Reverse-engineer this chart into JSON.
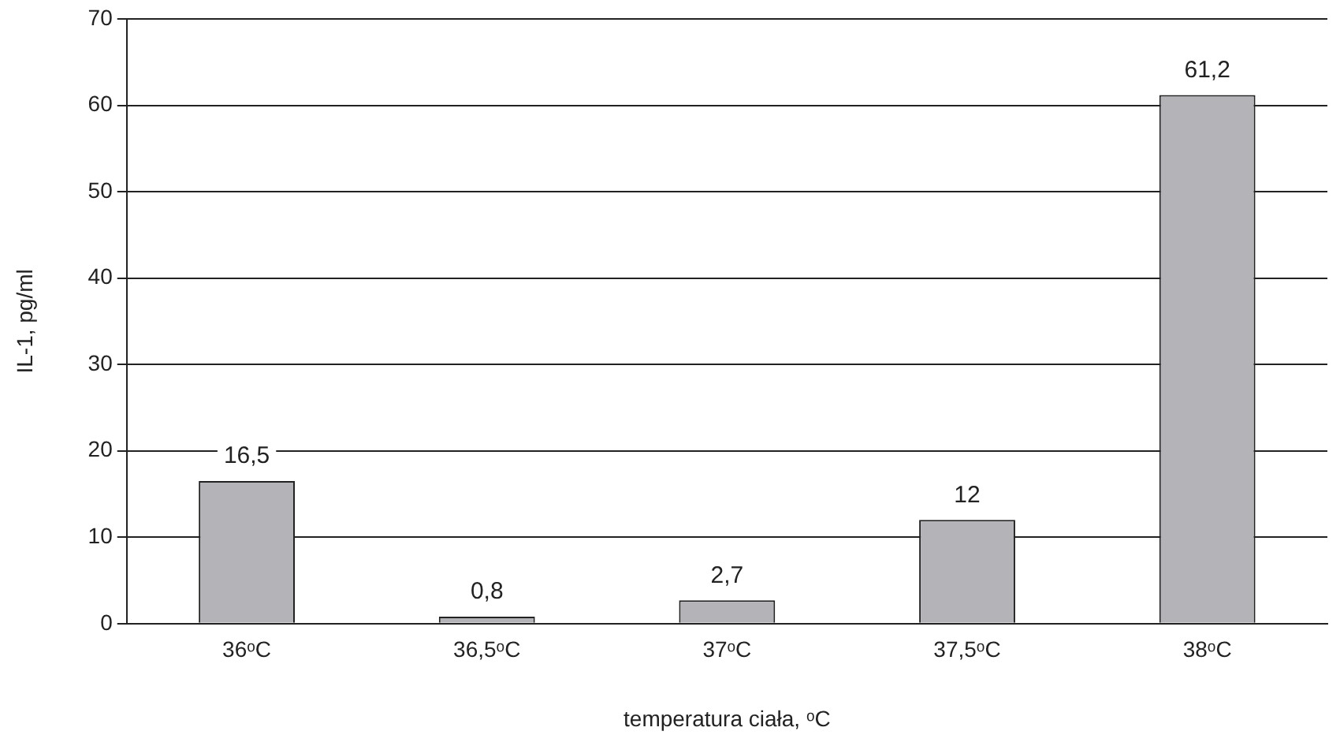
{
  "chart_data": {
    "type": "bar",
    "xlabel": "temperatura ciała, ᵒC",
    "ylabel": "IL-1, pg/ml",
    "categories": [
      "36ᵒC",
      "36,5ᵒC",
      "37ᵒC",
      "37,5ᵒC",
      "38ᵒC"
    ],
    "values": [
      16.5,
      0.8,
      2.7,
      12,
      61.2
    ],
    "value_labels": [
      "16,5",
      "0,8",
      "2,7",
      "12",
      "61,2"
    ],
    "color": "#b3b3b8",
    "ylim": [
      0,
      70
    ],
    "yticks": [
      0,
      10,
      20,
      30,
      40,
      50,
      60,
      70
    ],
    "grid": "y",
    "legend": false
  }
}
